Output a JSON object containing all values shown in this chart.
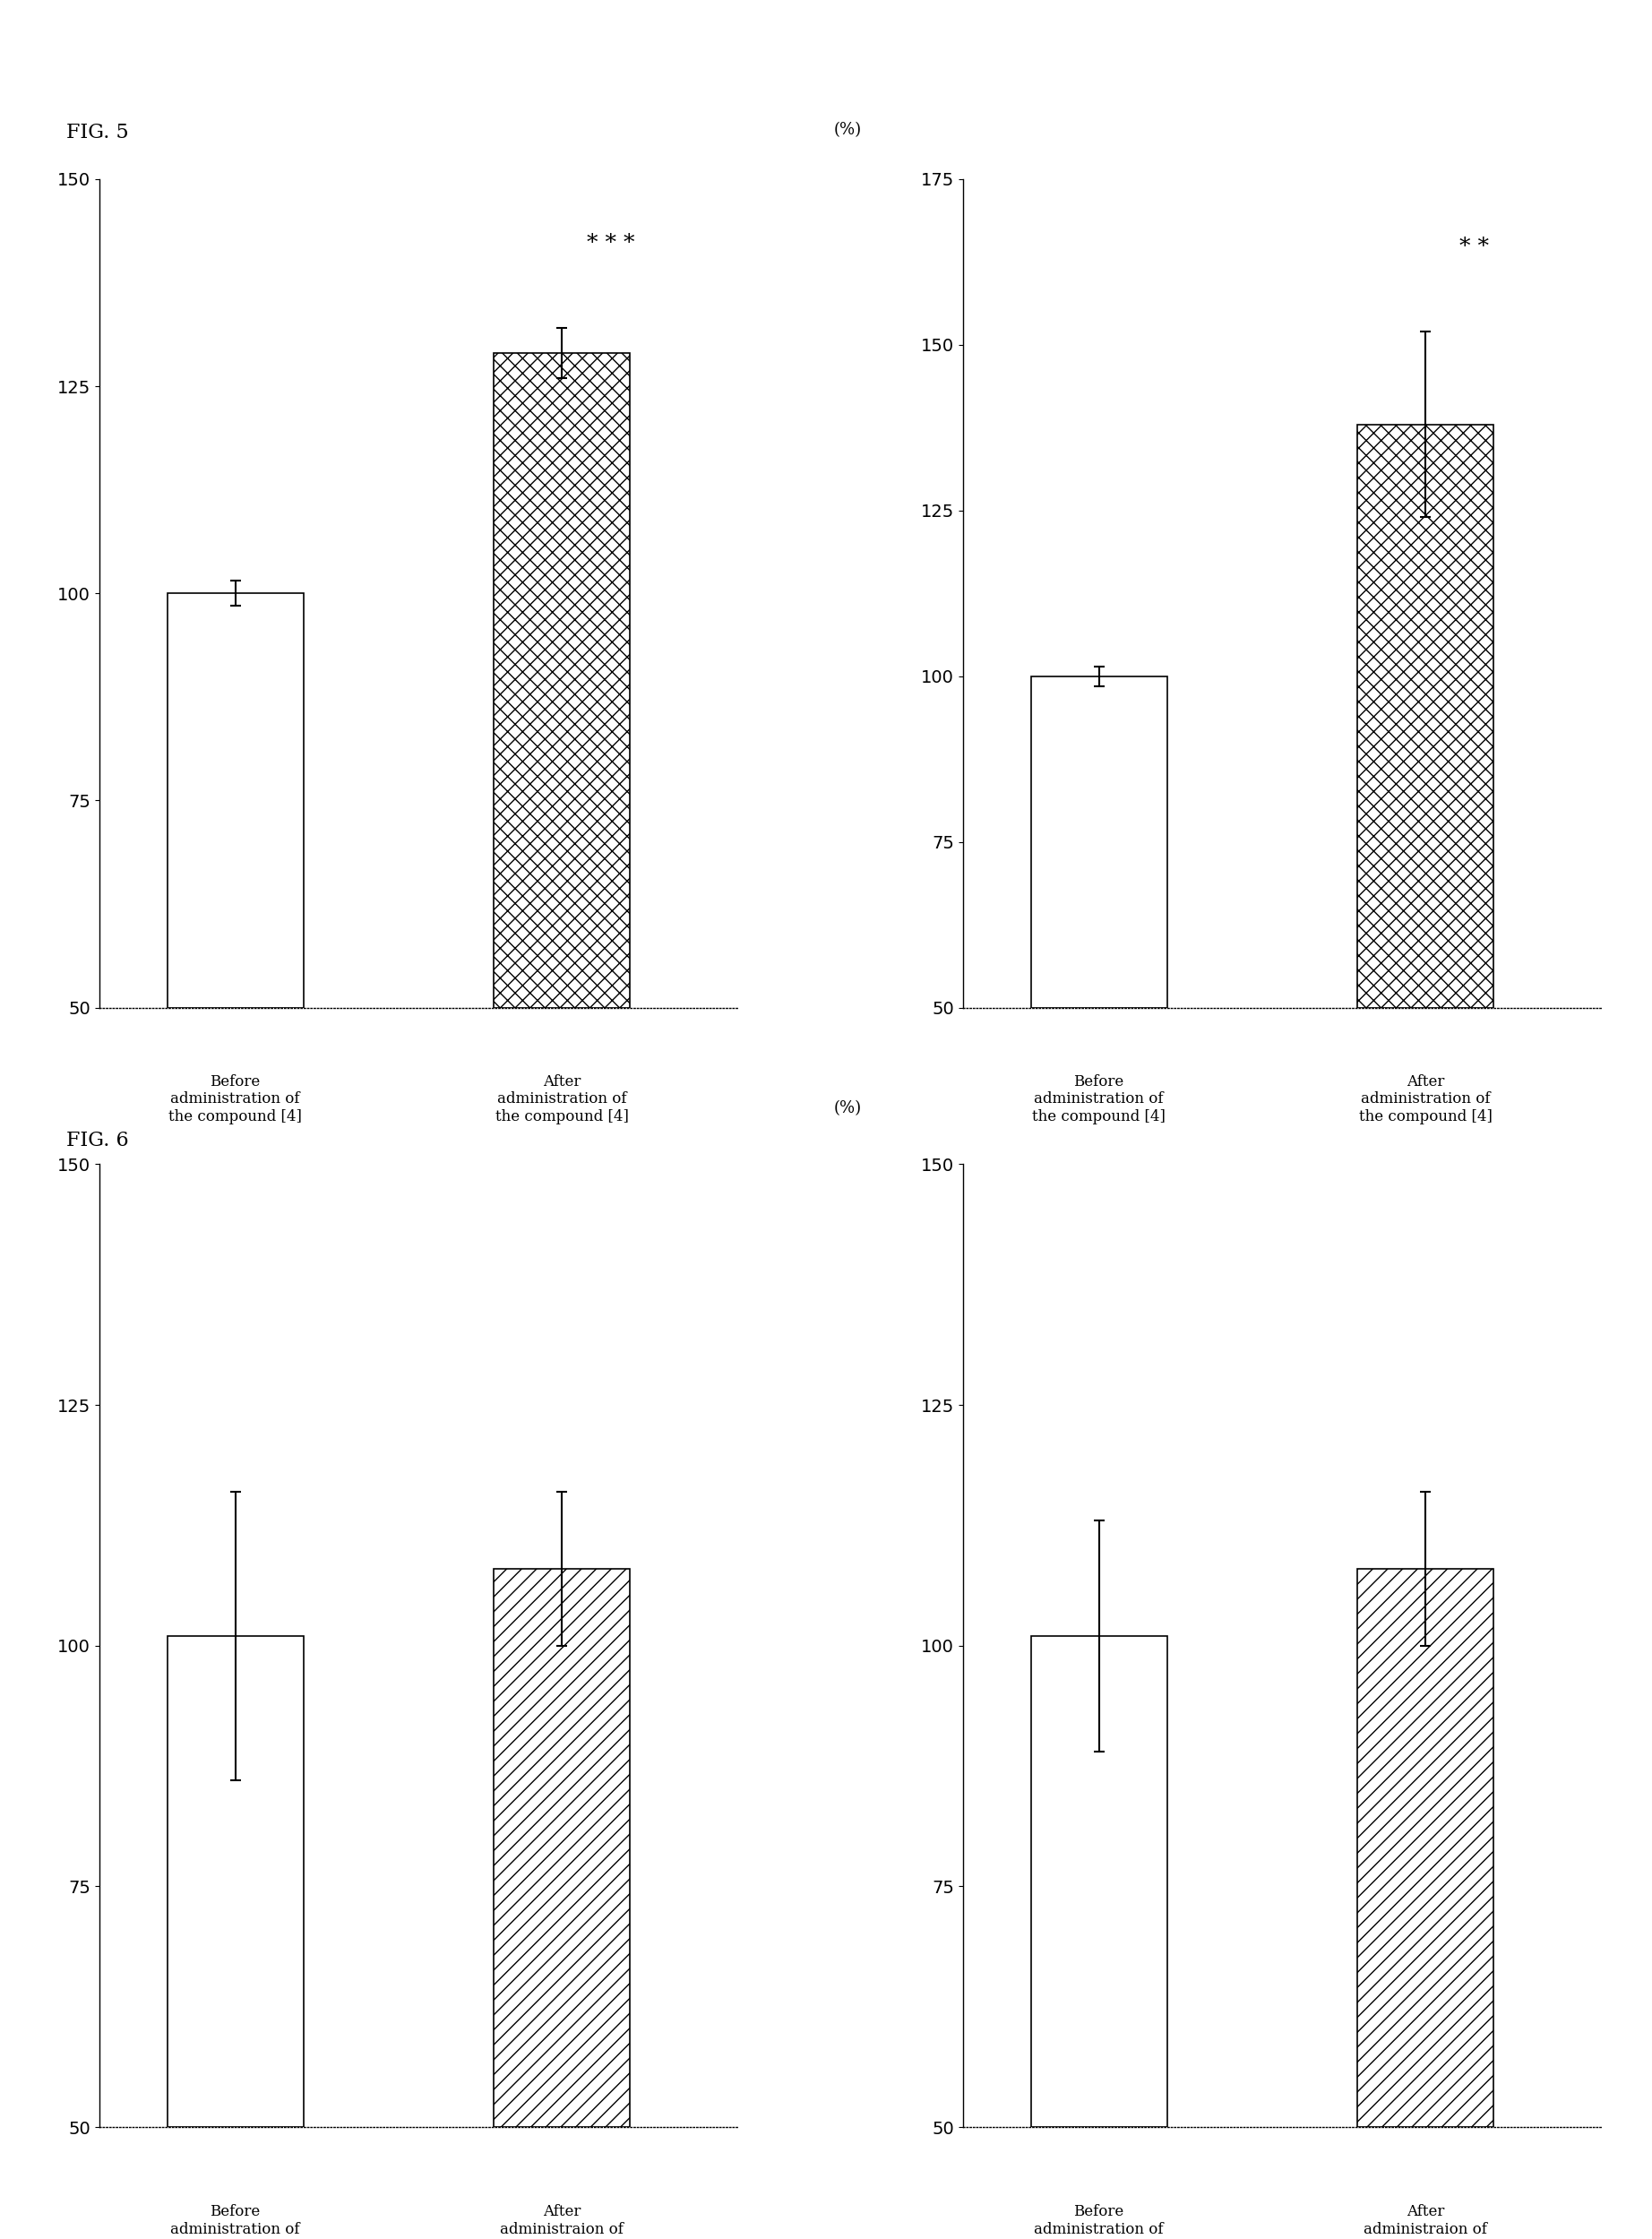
{
  "fig5_left": {
    "bars": [
      {
        "label": "Before\nadministration of\nthe compound [4]",
        "value": 100,
        "error": 1.5,
        "hatch": "",
        "facecolor": "white",
        "edgecolor": "black"
      },
      {
        "label": "After\nadministration of\nthe compound [4]",
        "value": 129,
        "error": 3.0,
        "hatch": "xx",
        "facecolor": "white",
        "edgecolor": "black"
      }
    ],
    "ylabel": "(%)",
    "ylim": [
      50,
      150
    ],
    "yticks": [
      50,
      75,
      100,
      125,
      150
    ],
    "significance": "* * *",
    "sig_bar_idx": 1
  },
  "fig5_right": {
    "bars": [
      {
        "label": "Before\nadministration of\nthe compound [4]",
        "value": 100,
        "error": 1.5,
        "hatch": "",
        "facecolor": "white",
        "edgecolor": "black"
      },
      {
        "label": "After\nadministration of\nthe compound [4]",
        "value": 138,
        "error": 14.0,
        "hatch": "xx",
        "facecolor": "white",
        "edgecolor": "black"
      }
    ],
    "ylabel": "(%)",
    "ylim": [
      50,
      175
    ],
    "yticks": [
      50,
      75,
      100,
      125,
      150,
      175
    ],
    "significance": "* *",
    "sig_bar_idx": 1
  },
  "fig6_left": {
    "bars": [
      {
        "label": "Before\nadministration of\nthe comparative\ncompound [A]",
        "value": 101,
        "error": 15.0,
        "hatch": "",
        "facecolor": "white",
        "edgecolor": "black"
      },
      {
        "label": "After\nadministraion of\nthe comparative\ncompound [A]",
        "value": 108,
        "error": 8.0,
        "hatch": "//",
        "facecolor": "white",
        "edgecolor": "black"
      }
    ],
    "ylabel": "(%)",
    "ylim": [
      50,
      150
    ],
    "yticks": [
      50,
      75,
      100,
      125,
      150
    ],
    "significance": null,
    "sig_bar_idx": null
  },
  "fig6_right": {
    "bars": [
      {
        "label": "Before\nadministration of\nthe comparative\ncompound [A]",
        "value": 101,
        "error": 12.0,
        "hatch": "",
        "facecolor": "white",
        "edgecolor": "black"
      },
      {
        "label": "After\nadministraion of\nthe comparative\ncompound [A]",
        "value": 108,
        "error": 8.0,
        "hatch": "//",
        "facecolor": "white",
        "edgecolor": "black"
      }
    ],
    "ylabel": "(%)",
    "ylim": [
      50,
      150
    ],
    "yticks": [
      50,
      75,
      100,
      125,
      150
    ],
    "significance": null,
    "sig_bar_idx": null
  },
  "fig5_label": "FIG. 5",
  "fig6_label": "FIG. 6",
  "background_color": "#ffffff",
  "bar_width": 0.5,
  "fontsize_label": 13,
  "fontsize_tick": 14,
  "fontsize_ylabel": 13,
  "fontsize_sig": 18,
  "fontsize_figlabel": 16
}
